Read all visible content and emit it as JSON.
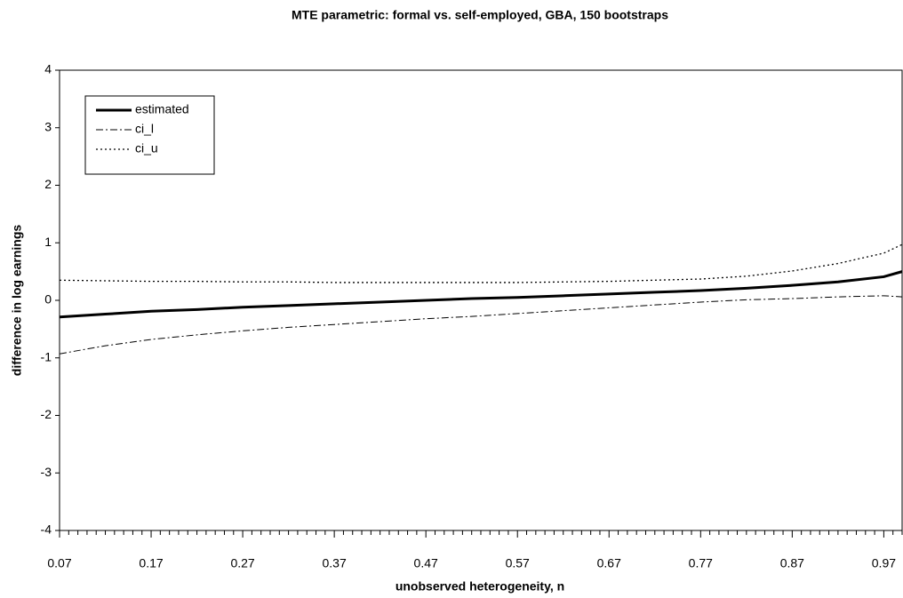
{
  "chart_data": {
    "type": "line",
    "title": "MTE parametric: formal vs. self-employed, GBA, 150 bootstraps",
    "x_label": "unobserved heterogeneity, n",
    "y_label": "difference in log earnings",
    "x": [
      0.07,
      0.12,
      0.17,
      0.22,
      0.27,
      0.32,
      0.37,
      0.42,
      0.47,
      0.52,
      0.57,
      0.62,
      0.67,
      0.72,
      0.77,
      0.82,
      0.87,
      0.92,
      0.97,
      0.99
    ],
    "series": [
      {
        "name": "estimated",
        "color": "#000000",
        "width": 3,
        "dash": "none",
        "values": [
          -0.29,
          -0.24,
          -0.19,
          -0.16,
          -0.12,
          -0.09,
          -0.06,
          -0.03,
          0,
          0.03,
          0.05,
          0.08,
          0.11,
          0.14,
          0.17,
          0.21,
          0.26,
          0.32,
          0.41,
          0.5
        ]
      },
      {
        "name": "ci_l",
        "color": "#000000",
        "width": 1,
        "dash": "8,3,2,3",
        "values": [
          -0.93,
          -0.79,
          -0.68,
          -0.6,
          -0.53,
          -0.47,
          -0.42,
          -0.37,
          -0.32,
          -0.28,
          -0.23,
          -0.18,
          -0.13,
          -0.08,
          -0.03,
          0.01,
          0.03,
          0.06,
          0.08,
          0.06
        ]
      },
      {
        "name": "ci_u",
        "color": "#000000",
        "width": 1.3,
        "dash": "2,3",
        "values": [
          0.35,
          0.34,
          0.33,
          0.33,
          0.32,
          0.32,
          0.31,
          0.31,
          0.31,
          0.31,
          0.31,
          0.32,
          0.33,
          0.35,
          0.37,
          0.42,
          0.51,
          0.64,
          0.82,
          0.97
        ]
      }
    ],
    "xlim": [
      0.07,
      0.99
    ],
    "xticks": [
      0.07,
      0.17,
      0.27,
      0.37,
      0.47,
      0.57,
      0.67,
      0.77,
      0.87,
      0.97
    ],
    "ylim": [
      -4,
      4
    ],
    "yticks": [
      -4,
      -3,
      -2,
      -1,
      0,
      1,
      2,
      3,
      4
    ],
    "legend": "upper left"
  }
}
